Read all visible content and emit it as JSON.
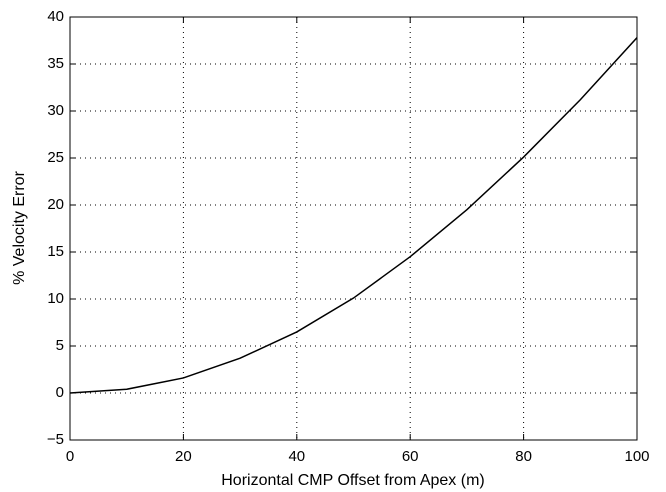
{
  "chart_data": {
    "type": "line",
    "x_label": "Horizontal CMP Offset from Apex (m)",
    "y_label": "% Velocity Error",
    "x": [
      0,
      10,
      20,
      30,
      40,
      50,
      60,
      70,
      80,
      90,
      100
    ],
    "series": [
      {
        "color": "#000000",
        "values": [
          0,
          0.4,
          1.6,
          3.7,
          6.5,
          10.1,
          14.5,
          19.5,
          25.1,
          31.2,
          37.8
        ]
      }
    ],
    "xlim": [
      0,
      100
    ],
    "xticks": [
      0,
      20,
      40,
      60,
      80,
      100
    ],
    "ylim": [
      -5,
      40
    ],
    "yticks": [
      {
        "value": -5,
        "label": "−5"
      },
      0,
      5,
      10,
      15,
      20,
      25,
      30,
      35,
      40
    ],
    "grid": true
  }
}
